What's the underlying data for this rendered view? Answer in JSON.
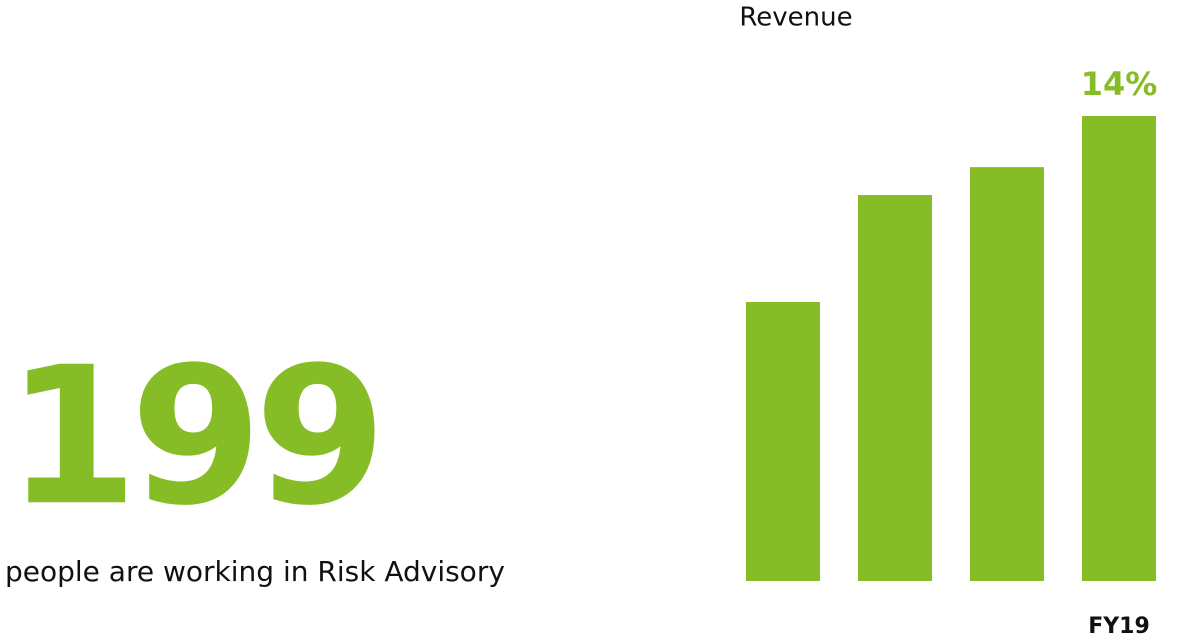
{
  "stat": {
    "number": 199,
    "caption": "people are working in Risk Advisory"
  },
  "chart_data": {
    "type": "bar",
    "title": "Revenue",
    "categories": [
      null,
      null,
      null,
      "FY19"
    ],
    "values": [
      60,
      83,
      89,
      100
    ],
    "annotation": "14%",
    "color": "#86bc25",
    "ylim": [
      0,
      100
    ]
  }
}
